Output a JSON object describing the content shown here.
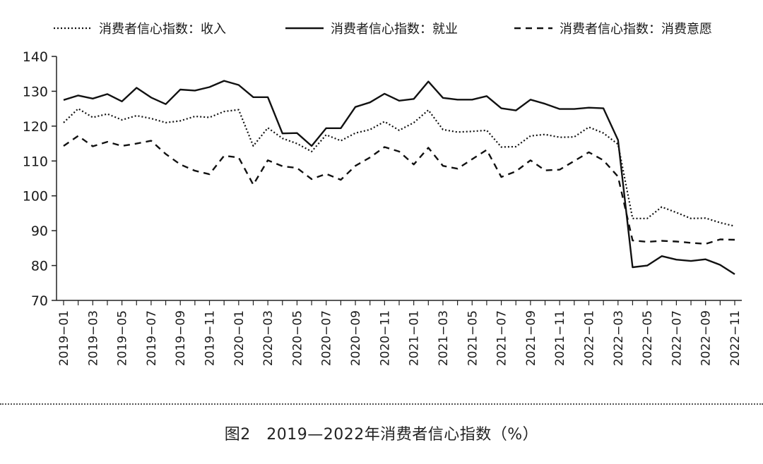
{
  "chart_data": {
    "type": "line",
    "caption": "图2　2019—2022年消费者信心指数（%）",
    "ylim": [
      70,
      140
    ],
    "yticks": [
      70,
      80,
      90,
      100,
      110,
      120,
      130,
      140
    ],
    "x": [
      "2019-01",
      "2019-02",
      "2019-03",
      "2019-04",
      "2019-05",
      "2019-06",
      "2019-07",
      "2019-08",
      "2019-09",
      "2019-10",
      "2019-11",
      "2019-12",
      "2020-01",
      "2020-02",
      "2020-03",
      "2020-04",
      "2020-05",
      "2020-06",
      "2020-07",
      "2020-08",
      "2020-09",
      "2020-10",
      "2020-11",
      "2020-12",
      "2021-01",
      "2021-02",
      "2021-03",
      "2021-04",
      "2021-05",
      "2021-06",
      "2021-07",
      "2021-08",
      "2021-09",
      "2021-10",
      "2021-11",
      "2021-12",
      "2022-01",
      "2022-02",
      "2022-03",
      "2022-04",
      "2022-05",
      "2022-06",
      "2022-07",
      "2022-08",
      "2022-09",
      "2022-10",
      "2022-11"
    ],
    "xtick_labels": [
      "2019−01",
      "2019−03",
      "2019−05",
      "2019−07",
      "2019−09",
      "2019−11",
      "2020−01",
      "2020−03",
      "2020−05",
      "2020−07",
      "2020−09",
      "2020−11",
      "2021−01",
      "2021−03",
      "2021−05",
      "2021−07",
      "2021−09",
      "2021−11",
      "2022−01",
      "2022−03",
      "2022−05",
      "2022−07",
      "2022−09",
      "2022−11"
    ],
    "series": [
      {
        "name": "消费者信心指数：收入",
        "style": "dotted",
        "values": [
          121.0,
          125.0,
          122.5,
          123.5,
          121.8,
          123.0,
          122.2,
          121.0,
          121.5,
          122.8,
          122.5,
          124.2,
          124.7,
          114.3,
          119.5,
          116.5,
          115.0,
          112.7,
          117.5,
          115.8,
          118.0,
          119.0,
          121.3,
          118.8,
          121.0,
          124.6,
          119.0,
          118.3,
          118.5,
          118.8,
          114.0,
          114.1,
          117.2,
          117.6,
          116.8,
          116.9,
          119.7,
          118.0,
          114.8,
          93.5,
          93.5,
          96.8,
          95.2,
          93.5,
          93.6,
          92.3,
          91.3
        ]
      },
      {
        "name": "消费者信心指数：就业",
        "style": "solid",
        "values": [
          127.5,
          128.8,
          127.9,
          129.2,
          127.1,
          131.0,
          128.2,
          126.3,
          130.5,
          130.2,
          131.2,
          133.0,
          131.8,
          128.3,
          128.3,
          117.9,
          118.0,
          114.3,
          119.4,
          119.4,
          125.5,
          126.8,
          129.3,
          127.3,
          127.8,
          132.8,
          128.1,
          127.6,
          127.6,
          128.6,
          125.1,
          124.5,
          127.6,
          126.4,
          124.9,
          124.9,
          125.3,
          125.1,
          116.0,
          79.5,
          80.0,
          82.7,
          81.7,
          81.3,
          81.8,
          80.2,
          77.5
        ]
      },
      {
        "name": "消费者信心指数：消费意愿",
        "style": "dashed",
        "values": [
          114.3,
          117.2,
          114.2,
          115.5,
          114.3,
          115.0,
          115.8,
          112.0,
          109.0,
          107.2,
          106.2,
          111.5,
          111.0,
          103.2,
          110.2,
          108.5,
          108.0,
          104.8,
          106.3,
          104.6,
          108.6,
          111.0,
          114.0,
          112.7,
          109.0,
          113.8,
          108.6,
          107.8,
          110.5,
          113.2,
          105.4,
          107.0,
          110.2,
          107.3,
          107.5,
          110.0,
          112.5,
          110.2,
          105.5,
          87.2,
          86.8,
          87.1,
          86.9,
          86.5,
          86.2,
          87.5,
          87.4
        ]
      }
    ]
  }
}
